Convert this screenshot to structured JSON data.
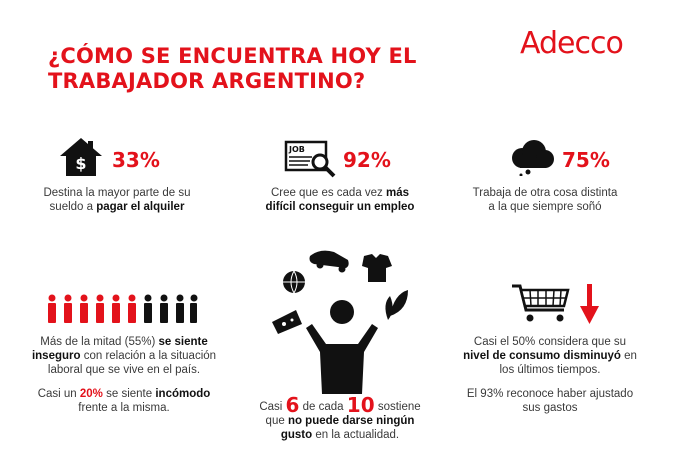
{
  "logo": "Adecco",
  "title": {
    "line1": "¿CÓMO SE ENCUENTRA HOY EL",
    "line2": "TRABAJADOR ARGENTINO?"
  },
  "colors": {
    "accent": "#e3121b",
    "text": "#2b2b2b"
  },
  "stat1": {
    "icon": "house-dollar-icon",
    "percent": "33%",
    "text_a": "Destina la mayor parte de su",
    "text_b": "sueldo a ",
    "bold": "pagar el alquiler"
  },
  "stat2": {
    "icon": "job-search-icon",
    "icon_label": "JOB",
    "percent": "92%",
    "text_a": "Cree que es cada vez ",
    "bold_a": "más",
    "bold_b": "difícil conseguir un empleo"
  },
  "stat3": {
    "icon": "cloud-icon",
    "percent": "75%",
    "text_a": "Trabaja de otra cosa distinta",
    "text_b": "a la que siempre soñó"
  },
  "stat4": {
    "icon": "people-icon",
    "text_a": "Más de la mitad (55%) ",
    "bold_a": "se siente",
    "bold_b": "inseguro",
    "text_b": " con relación a la situación",
    "text_c": "laboral que se vive en el país.",
    "text_d": "Casi un ",
    "red": "20%",
    "text_e": " se siente ",
    "bold_c": "incómodo",
    "text_f": "frente a la misma."
  },
  "stat5": {
    "icon": "juggling-person-icon",
    "text_a": "Casi ",
    "num_a": "6",
    "text_b": " de cada ",
    "num_b": "10",
    "text_c": " sostiene",
    "text_d": "que ",
    "bold_a": "no puede darse ningún",
    "bold_b": "gusto",
    "text_e": " en la actualidad."
  },
  "stat6": {
    "icon": "shopping-cart-down-icon",
    "text_a": "Casi el 50% considera que su",
    "bold_a": "nivel de consumo disminuyó",
    "text_b": " en",
    "text_c": "los últimos tiempos.",
    "text_d": "El 93% reconoce haber ajustado",
    "text_e": "sus gastos"
  }
}
